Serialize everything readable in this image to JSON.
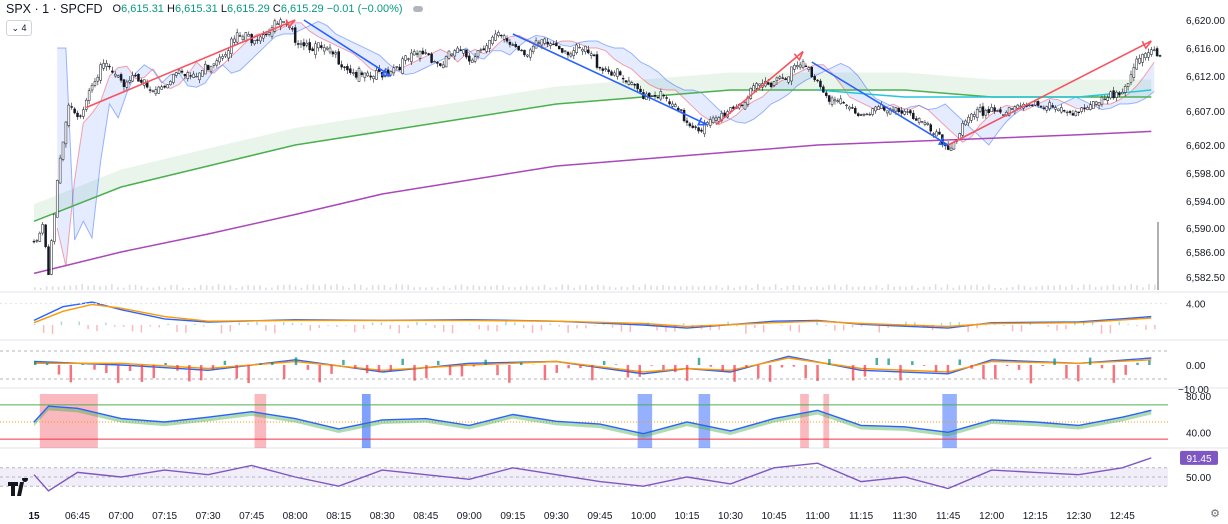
{
  "header": {
    "symbol": "SPX · 1 · SPCFD",
    "open_label": "O",
    "open": "6,615.31",
    "high_label": "H",
    "high": "6,615.31",
    "low_label": "L",
    "low": "6,615.29",
    "close_label": "C",
    "close": "6,615.29",
    "change": "−0.01 (−0.00%)",
    "indicators_count": "4"
  },
  "colors": {
    "up": "#089981",
    "down": "#f23645",
    "blue": "#2962ff",
    "red_line": "#f7525f",
    "green_ma": "#4caf50",
    "purple_ma": "#ab47bc",
    "teal": "#26c6da",
    "orange": "#ff9800",
    "rsi": "#7e57c2"
  },
  "chart_data": [
    {
      "type": "candlestick",
      "pane": "price",
      "x_ticks": [
        "15",
        "06:45",
        "07:00",
        "07:15",
        "07:30",
        "07:45",
        "08:00",
        "08:15",
        "08:30",
        "08:45",
        "09:00",
        "09:15",
        "09:30",
        "09:45",
        "10:00",
        "10:15",
        "10:30",
        "10:45",
        "11:00",
        "11:15",
        "11:30",
        "11:45",
        "12:00",
        "12:15",
        "12:30",
        "12:45"
      ],
      "y_ticks": [
        "6,620.00",
        "6,616.00",
        "6,612.00",
        "6,607.00",
        "6,602.00",
        "6,598.00",
        "6,594.00",
        "6,590.00",
        "6,586.00",
        "6,582.50"
      ],
      "ylim": [
        6581,
        6621
      ],
      "anchors": [
        [
          "06:30",
          6588
        ],
        [
          "06:33",
          6591
        ],
        [
          "06:35",
          6584
        ],
        [
          "06:38",
          6597
        ],
        [
          "06:42",
          6608
        ],
        [
          "06:45",
          6606
        ],
        [
          "06:50",
          6612
        ],
        [
          "06:55",
          6614
        ],
        [
          "07:00",
          6611
        ],
        [
          "07:05",
          6613
        ],
        [
          "07:10",
          6610
        ],
        [
          "07:15",
          6611
        ],
        [
          "07:20",
          6614
        ],
        [
          "07:25",
          6612
        ],
        [
          "07:30",
          6614
        ],
        [
          "07:35",
          6616
        ],
        [
          "07:40",
          6618
        ],
        [
          "07:45",
          6618
        ],
        [
          "07:50",
          6619
        ],
        [
          "07:55",
          6620
        ],
        [
          "08:00",
          6618
        ],
        [
          "08:05",
          6617
        ],
        [
          "08:10",
          6616
        ],
        [
          "08:15",
          6615
        ],
        [
          "08:20",
          6613
        ],
        [
          "08:25",
          6612
        ],
        [
          "08:30",
          6613
        ],
        [
          "08:35",
          6614
        ],
        [
          "08:40",
          6615
        ],
        [
          "08:45",
          6616
        ],
        [
          "08:50",
          6614
        ],
        [
          "08:55",
          6616
        ],
        [
          "09:00",
          6615
        ],
        [
          "09:05",
          6617
        ],
        [
          "09:10",
          6618
        ],
        [
          "09:15",
          6617
        ],
        [
          "09:20",
          6616
        ],
        [
          "09:25",
          6617
        ],
        [
          "09:30",
          6617
        ],
        [
          "09:35",
          6616
        ],
        [
          "09:40",
          6616
        ],
        [
          "09:45",
          6614
        ],
        [
          "09:50",
          6613
        ],
        [
          "09:55",
          6611
        ],
        [
          "10:00",
          6610
        ],
        [
          "10:05",
          6610
        ],
        [
          "10:10",
          6608
        ],
        [
          "10:15",
          6606
        ],
        [
          "10:20",
          6605
        ],
        [
          "10:25",
          6606
        ],
        [
          "10:30",
          6608
        ],
        [
          "10:35",
          6609
        ],
        [
          "10:40",
          6611
        ],
        [
          "10:45",
          6612
        ],
        [
          "10:50",
          6613
        ],
        [
          "10:55",
          6614
        ],
        [
          "11:00",
          6612
        ],
        [
          "11:05",
          6609
        ],
        [
          "11:10",
          6608
        ],
        [
          "11:15",
          6607
        ],
        [
          "11:20",
          6608
        ],
        [
          "11:25",
          6607
        ],
        [
          "11:30",
          6608
        ],
        [
          "11:35",
          6606
        ],
        [
          "11:40",
          6604
        ],
        [
          "11:45",
          6602
        ],
        [
          "11:50",
          6605
        ],
        [
          "11:55",
          6607
        ],
        [
          "12:00",
          6608
        ],
        [
          "12:05",
          6607
        ],
        [
          "12:10",
          6608
        ],
        [
          "12:15",
          6609
        ],
        [
          "12:20",
          6608
        ],
        [
          "12:25",
          6607
        ],
        [
          "12:30",
          6608
        ],
        [
          "12:35",
          6608
        ],
        [
          "12:40",
          6609
        ],
        [
          "12:45",
          6611
        ],
        [
          "12:50",
          6614
        ],
        [
          "12:55",
          6616
        ]
      ],
      "last_price": 6615.29
    },
    {
      "type": "line",
      "pane": "price",
      "series": [
        {
          "name": "",
          "color": "#4caf50",
          "points": [
            [
              "06:30",
              6591
            ],
            [
              "07:00",
              6596
            ],
            [
              "07:30",
              6599
            ],
            [
              "08:00",
              6602
            ],
            [
              "08:30",
              6604
            ],
            [
              "09:00",
              6606
            ],
            [
              "09:30",
              6608
            ],
            [
              "10:00",
              6609
            ],
            [
              "10:30",
              6610
            ],
            [
              "11:00",
              6610
            ],
            [
              "11:30",
              6610
            ],
            [
              "12:00",
              6609
            ],
            [
              "12:30",
              6609
            ],
            [
              "12:55",
              6609
            ]
          ]
        },
        {
          "name": "",
          "color": "#ab47bc",
          "points": [
            [
              "06:30",
              6583
            ],
            [
              "07:00",
              6586
            ],
            [
              "07:30",
              6589
            ],
            [
              "08:00",
              6592
            ],
            [
              "08:30",
              6595
            ],
            [
              "09:00",
              6597
            ],
            [
              "09:30",
              6599
            ],
            [
              "10:00",
              6600
            ],
            [
              "10:30",
              6601
            ],
            [
              "11:00",
              6602
            ],
            [
              "11:30",
              6602.5
            ],
            [
              "12:00",
              6603
            ],
            [
              "12:30",
              6603.5
            ],
            [
              "12:55",
              6604
            ]
          ]
        }
      ]
    },
    {
      "type": "line",
      "pane": "oscillator-1",
      "y_ticks": [
        "4.00"
      ],
      "series": [
        {
          "name": "",
          "color": "#2962ff",
          "points": [
            [
              "06:30",
              1.8
            ],
            [
              "06:40",
              3.6
            ],
            [
              "06:50",
              4.2
            ],
            [
              "07:00",
              3.2
            ],
            [
              "07:15",
              2.0
            ],
            [
              "07:30",
              1.6
            ],
            [
              "08:00",
              1.9
            ],
            [
              "08:30",
              1.8
            ],
            [
              "09:00",
              1.9
            ],
            [
              "09:30",
              1.7
            ],
            [
              "10:00",
              1.2
            ],
            [
              "10:15",
              0.8
            ],
            [
              "10:45",
              1.7
            ],
            [
              "11:00",
              1.8
            ],
            [
              "11:15",
              1.3
            ],
            [
              "11:45",
              0.8
            ],
            [
              "12:00",
              1.5
            ],
            [
              "12:30",
              1.6
            ],
            [
              "12:55",
              2.3
            ]
          ]
        },
        {
          "name": "",
          "color": "#ff9800",
          "points": [
            [
              "06:30",
              1.5
            ],
            [
              "06:40",
              3.0
            ],
            [
              "06:50",
              3.9
            ],
            [
              "07:00",
              3.4
            ],
            [
              "07:15",
              2.3
            ],
            [
              "07:30",
              1.7
            ],
            [
              "08:00",
              1.8
            ],
            [
              "08:30",
              1.8
            ],
            [
              "09:00",
              1.8
            ],
            [
              "09:30",
              1.7
            ],
            [
              "10:00",
              1.4
            ],
            [
              "10:15",
              1.0
            ],
            [
              "10:45",
              1.5
            ],
            [
              "11:00",
              1.7
            ],
            [
              "11:15",
              1.4
            ],
            [
              "11:45",
              1.0
            ],
            [
              "12:00",
              1.4
            ],
            [
              "12:30",
              1.5
            ],
            [
              "12:55",
              2.1
            ]
          ]
        }
      ]
    },
    {
      "type": "line",
      "pane": "oscillator-2",
      "y_ticks": [
        "0.00",
        "−10.00"
      ],
      "series": [
        {
          "name": "",
          "color": "#2962ff",
          "points": [
            [
              "06:30",
              2
            ],
            [
              "07:00",
              0
            ],
            [
              "07:30",
              -3
            ],
            [
              "08:00",
              3
            ],
            [
              "08:30",
              -4
            ],
            [
              "09:00",
              1
            ],
            [
              "09:30",
              2
            ],
            [
              "10:00",
              -5
            ],
            [
              "10:15",
              -2
            ],
            [
              "10:30",
              -4
            ],
            [
              "10:50",
              5
            ],
            [
              "11:15",
              -3
            ],
            [
              "11:45",
              -5
            ],
            [
              "12:00",
              3
            ],
            [
              "12:30",
              1
            ],
            [
              "12:55",
              4
            ]
          ]
        },
        {
          "name": "",
          "color": "#ff9800",
          "points": [
            [
              "06:30",
              1
            ],
            [
              "07:00",
              1
            ],
            [
              "07:30",
              -2
            ],
            [
              "08:00",
              2
            ],
            [
              "08:30",
              -3
            ],
            [
              "09:00",
              0
            ],
            [
              "09:30",
              2
            ],
            [
              "10:00",
              -4
            ],
            [
              "10:15",
              -2
            ],
            [
              "10:30",
              -3
            ],
            [
              "10:50",
              4
            ],
            [
              "11:15",
              -2
            ],
            [
              "11:45",
              -4
            ],
            [
              "12:00",
              2
            ],
            [
              "12:30",
              1
            ],
            [
              "12:55",
              3
            ]
          ]
        }
      ]
    },
    {
      "type": "line",
      "pane": "oscillator-3",
      "y_ticks": [
        "80.00",
        "40.00"
      ],
      "series": [
        {
          "name": "",
          "color": "#2962ff",
          "points": [
            [
              "06:30",
              55
            ],
            [
              "06:35",
              78
            ],
            [
              "06:45",
              75
            ],
            [
              "07:00",
              60
            ],
            [
              "07:15",
              55
            ],
            [
              "07:30",
              62
            ],
            [
              "07:45",
              70
            ],
            [
              "08:00",
              60
            ],
            [
              "08:15",
              45
            ],
            [
              "08:30",
              58
            ],
            [
              "08:45",
              60
            ],
            [
              "09:00",
              50
            ],
            [
              "09:15",
              66
            ],
            [
              "09:30",
              56
            ],
            [
              "09:45",
              52
            ],
            [
              "10:00",
              38
            ],
            [
              "10:15",
              55
            ],
            [
              "10:30",
              42
            ],
            [
              "10:45",
              60
            ],
            [
              "11:00",
              72
            ],
            [
              "11:15",
              50
            ],
            [
              "11:30",
              48
            ],
            [
              "11:45",
              40
            ],
            [
              "12:00",
              58
            ],
            [
              "12:15",
              55
            ],
            [
              "12:30",
              50
            ],
            [
              "12:45",
              62
            ],
            [
              "12:55",
              72
            ]
          ]
        }
      ]
    },
    {
      "type": "line",
      "pane": "rsi",
      "y_ticks": [
        "50.00"
      ],
      "last_value_label": "91.45",
      "series": [
        {
          "name": "",
          "color": "#7e57c2",
          "points": [
            [
              "06:30",
              55
            ],
            [
              "06:35",
              20
            ],
            [
              "06:45",
              60
            ],
            [
              "07:00",
              50
            ],
            [
              "07:15",
              65
            ],
            [
              "07:30",
              55
            ],
            [
              "07:45",
              75
            ],
            [
              "08:00",
              50
            ],
            [
              "08:15",
              30
            ],
            [
              "08:30",
              65
            ],
            [
              "08:45",
              55
            ],
            [
              "09:00",
              45
            ],
            [
              "09:15",
              70
            ],
            [
              "09:30",
              55
            ],
            [
              "09:45",
              40
            ],
            [
              "10:00",
              30
            ],
            [
              "10:15",
              50
            ],
            [
              "10:30",
              35
            ],
            [
              "10:45",
              70
            ],
            [
              "11:00",
              80
            ],
            [
              "11:15",
              40
            ],
            [
              "11:30",
              50
            ],
            [
              "11:45",
              25
            ],
            [
              "12:00",
              65
            ],
            [
              "12:15",
              60
            ],
            [
              "12:30",
              55
            ],
            [
              "12:45",
              70
            ],
            [
              "12:55",
              91.45
            ]
          ]
        }
      ]
    }
  ]
}
